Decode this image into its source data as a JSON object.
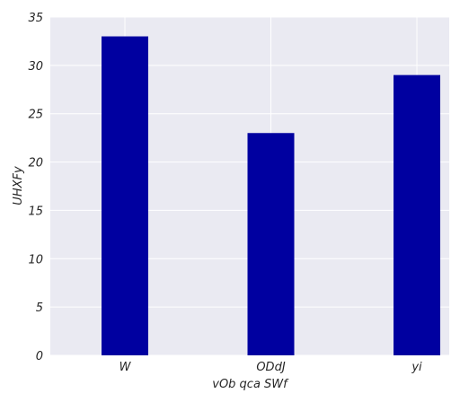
{
  "chart_data": {
    "type": "bar",
    "categories": [
      "W",
      "ODdJ",
      "yi"
    ],
    "values": [
      33,
      23,
      29
    ],
    "xlabel": "vOb  qca  SWf",
    "ylabel": "UHXFy",
    "ylim": [
      0,
      35
    ],
    "yticks": [
      0,
      5,
      10,
      15,
      20,
      25,
      30,
      35
    ],
    "grid": true,
    "colors": {
      "bar": "#0000a0",
      "plot_background": "#eaeaf2",
      "grid": "#ffffff"
    }
  }
}
